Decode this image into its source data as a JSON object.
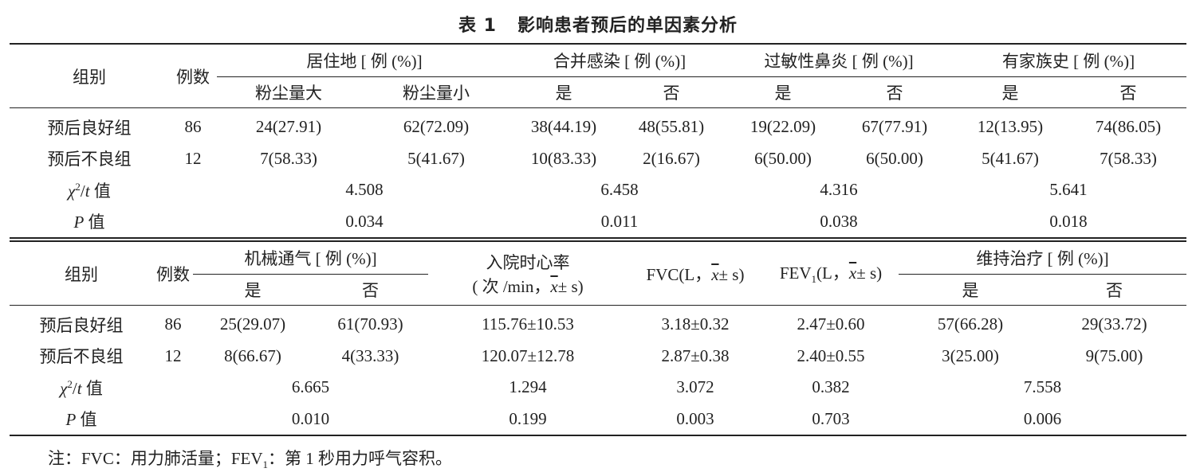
{
  "title": {
    "number": "表 1",
    "text": "影响患者预后的单因素分析"
  },
  "table1": {
    "group_label": "组别",
    "count_label": "例数",
    "col_groups": [
      {
        "label": "居住地 [ 例 (%)]",
        "sub": [
          "粉尘量大",
          "粉尘量小"
        ]
      },
      {
        "label": "合并感染 [ 例 (%)]",
        "sub": [
          "是",
          "否"
        ]
      },
      {
        "label": "过敏性鼻炎 [ 例 (%)]",
        "sub": [
          "是",
          "否"
        ]
      },
      {
        "label": "有家族史 [ 例 (%)]",
        "sub": [
          "是",
          "否"
        ]
      }
    ],
    "rows": [
      {
        "group": "预后良好组",
        "n": "86",
        "values": [
          "24(27.91)",
          "62(72.09)",
          "38(44.19)",
          "48(55.81)",
          "19(22.09)",
          "67(77.91)",
          "12(13.95)",
          "74(86.05)"
        ]
      },
      {
        "group": "预后不良组",
        "n": "12",
        "values": [
          "7(58.33)",
          "5(41.67)",
          "10(83.33)",
          "2(16.67)",
          "6(50.00)",
          "6(50.00)",
          "5(41.67)",
          "7(58.33)"
        ]
      }
    ],
    "chi_label": "χ²/t 值",
    "chi_values": [
      "4.508",
      "6.458",
      "4.316",
      "5.641"
    ],
    "p_label": "P 值",
    "p_values": [
      "0.034",
      "0.011",
      "0.038",
      "0.018"
    ]
  },
  "table2": {
    "group_label": "组别",
    "count_label": "例数",
    "ventilation": {
      "label": "机械通气 [ 例 (%)]",
      "sub": [
        "是",
        "否"
      ]
    },
    "heart_rate": {
      "line1": "入院时心率",
      "line2_pre": "( 次 /min，",
      "line2_post": "± s)"
    },
    "fvc": {
      "pre": "FVC(L，",
      "post": "± s)"
    },
    "fev1": {
      "pre": "FEV",
      "sub": "1",
      "mid": "(L，",
      "post": "± s)"
    },
    "xbar": "x",
    "maintenance": {
      "label": "维持治疗 [ 例 (%)]",
      "sub": [
        "是",
        "否"
      ]
    },
    "rows": [
      {
        "group": "预后良好组",
        "n": "86",
        "values": [
          "25(29.07)",
          "61(70.93)",
          "115.76±10.53",
          "3.18±0.32",
          "2.47±0.60",
          "57(66.28)",
          "29(33.72)"
        ]
      },
      {
        "group": "预后不良组",
        "n": "12",
        "values": [
          "8(66.67)",
          "4(33.33)",
          "120.07±12.78",
          "2.87±0.38",
          "2.40±0.55",
          "3(25.00)",
          "9(75.00)"
        ]
      }
    ],
    "chi_label": "χ²/t 值",
    "chi_values": [
      "6.665",
      "1.294",
      "3.072",
      "0.382",
      "7.558"
    ],
    "p_label": "P 值",
    "p_values": [
      "0.010",
      "0.199",
      "0.003",
      "0.703",
      "0.006"
    ]
  },
  "note": {
    "pre": "注：FVC：用力肺活量；FEV",
    "sub": "1",
    "post": "：第 1 秒用力呼气容积。"
  }
}
